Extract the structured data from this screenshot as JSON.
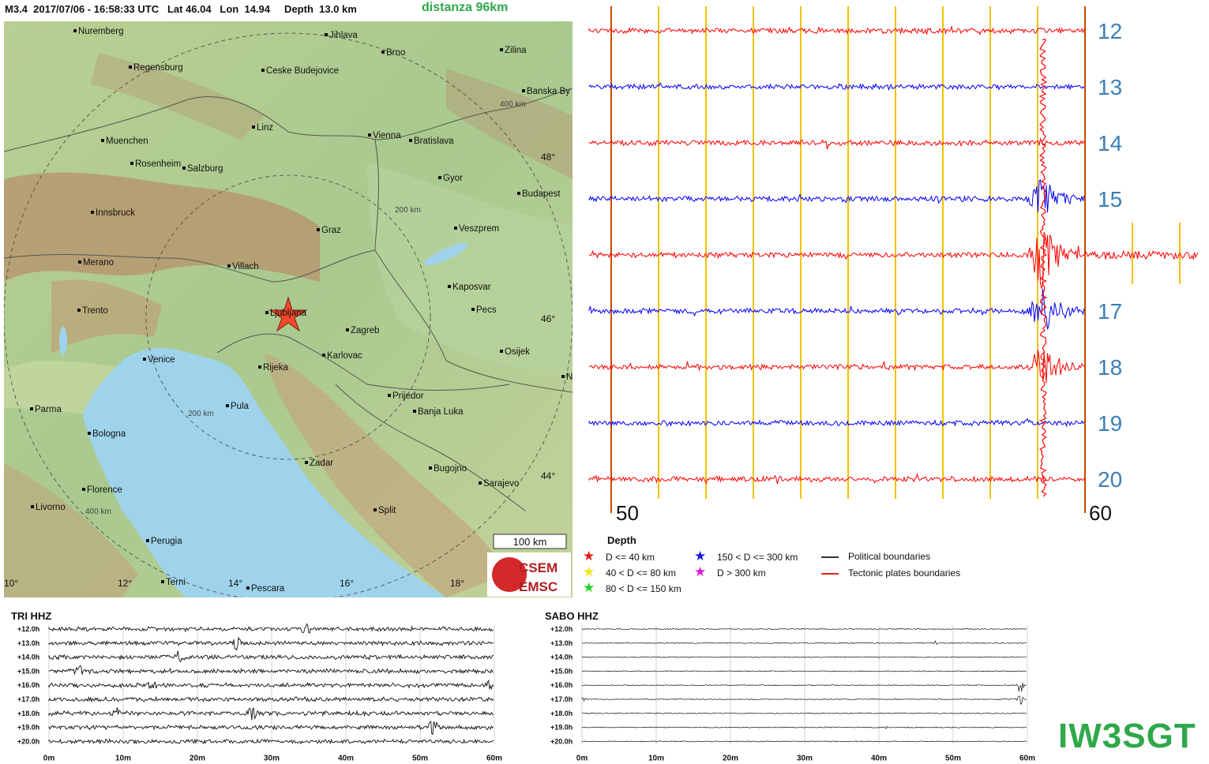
{
  "header": {
    "info": "M3.4  2017/07/06 - 16:58:33 UTC   Lat 46.04   Lon  14.94     Depth  13.0 km",
    "distance": "distanza 96km"
  },
  "map": {
    "cities": [
      {
        "name": "Nuremberg"
      },
      {
        "name": "Jihlava"
      },
      {
        "name": "Brno"
      },
      {
        "name": "Zilina"
      },
      {
        "name": "Regensburg"
      },
      {
        "name": "Ceske Budejovice"
      },
      {
        "name": "Banska By"
      },
      {
        "name": "Linz"
      },
      {
        "name": "Vienna"
      },
      {
        "name": "Bratislava"
      },
      {
        "name": "Muenchen"
      },
      {
        "name": "Rosenheim"
      },
      {
        "name": "Salzburg"
      },
      {
        "name": "Gyor"
      },
      {
        "name": "Budapest"
      },
      {
        "name": "Innsbruck"
      },
      {
        "name": "Graz"
      },
      {
        "name": "Veszprem"
      },
      {
        "name": "Merano"
      },
      {
        "name": "Villach"
      },
      {
        "name": "Kaposvar"
      },
      {
        "name": "Trento"
      },
      {
        "name": "Ljubljana"
      },
      {
        "name": "Pecs"
      },
      {
        "name": "Zagreb"
      },
      {
        "name": "Karlovac"
      },
      {
        "name": "Osijek"
      },
      {
        "name": "Venice"
      },
      {
        "name": "Rijeka"
      },
      {
        "name": "No"
      },
      {
        "name": "Prijedor"
      },
      {
        "name": "Parma"
      },
      {
        "name": "Pula"
      },
      {
        "name": "Banja Luka"
      },
      {
        "name": "Bologna"
      },
      {
        "name": "Zadar"
      },
      {
        "name": "Bugojno"
      },
      {
        "name": "Sarajevo"
      },
      {
        "name": "Florence"
      },
      {
        "name": "Livorno"
      },
      {
        "name": "Split"
      },
      {
        "name": "Perugia"
      },
      {
        "name": "Terni"
      },
      {
        "name": "Pescara"
      }
    ],
    "ring_labels": [
      "400 km",
      "200 km",
      "200 km",
      "400 km"
    ],
    "lat_labels": [
      "48°",
      "46°",
      "44°"
    ],
    "lon_labels": [
      "10°",
      "12°",
      "14°",
      "16°",
      "18°"
    ],
    "scale_label": "100 km",
    "logo": {
      "top": "CSEM",
      "bottom": "EMSC"
    }
  },
  "drum": {
    "hours": [
      "12",
      "13",
      "14",
      "15",
      "16",
      "17",
      "18",
      "19",
      "20"
    ],
    "minute_start": "50",
    "minute_end": "60",
    "colors": {
      "red": "#ff0000",
      "blue": "#0000ff",
      "grid": "#f2c200",
      "edge": "#c84a00",
      "hour_label": "#3d7fb5"
    }
  },
  "legend": {
    "title": "Depth",
    "items": [
      {
        "label": "D <= 40 km",
        "color": "#e0201a"
      },
      {
        "label": "40 < D <= 80 km",
        "color": "#f2e61a"
      },
      {
        "label": "80 < D <= 150 km",
        "color": "#22d422"
      },
      {
        "label": "150 < D <= 300 km",
        "color": "#1a1ad8"
      },
      {
        "label": "D > 300 km",
        "color": "#d81ad8"
      }
    ],
    "lines": [
      {
        "label": "Political boundaries",
        "color": "#333333"
      },
      {
        "label": "Tectonic plates boundaries",
        "color": "#e0201a"
      }
    ]
  },
  "heli": [
    {
      "title": "TRI HHZ"
    },
    {
      "title": "SABO HHZ"
    }
  ],
  "heli_rows": [
    "+12.0h",
    "+13.0h",
    "+14.0h",
    "+15.0h",
    "+16.0h",
    "+17.0h",
    "+18.0h",
    "+19.0h",
    "+20.0h"
  ],
  "heli_xticks": [
    "0m",
    "10m",
    "20m",
    "30m",
    "40m",
    "50m",
    "60m"
  ],
  "callsign": "IW3SGT"
}
